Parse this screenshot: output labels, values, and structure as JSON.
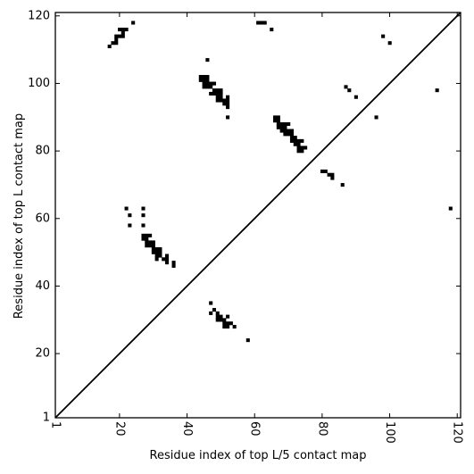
{
  "chart_data": {
    "type": "scatter",
    "xlabel": "Residue index of top L/5 contact map",
    "ylabel": "Residue index of top L contact map",
    "xlim": [
      1,
      121
    ],
    "ylim": [
      1,
      121
    ],
    "xticks": [
      {
        "value": 1,
        "label": "1"
      },
      {
        "value": 20,
        "label": "20"
      },
      {
        "value": 40,
        "label": "40"
      },
      {
        "value": 60,
        "label": "60"
      },
      {
        "value": 80,
        "label": "80"
      },
      {
        "value": 100,
        "label": "100"
      },
      {
        "value": 120,
        "label": "120"
      }
    ],
    "yticks": [
      {
        "value": 1,
        "label": "1"
      },
      {
        "value": 20,
        "label": "20"
      },
      {
        "value": 40,
        "label": "40"
      },
      {
        "value": 60,
        "label": "60"
      },
      {
        "value": 80,
        "label": "80"
      },
      {
        "value": 100,
        "label": "100"
      },
      {
        "value": 120,
        "label": "120"
      }
    ],
    "x_tick_rotation": -90,
    "grid": false,
    "diagonal": {
      "from": [
        1,
        1
      ],
      "to": [
        121,
        121
      ]
    },
    "points_upper": [
      [
        17,
        111
      ],
      [
        18,
        112
      ],
      [
        19,
        112
      ],
      [
        19,
        113
      ],
      [
        19,
        114
      ],
      [
        20,
        114
      ],
      [
        21,
        114
      ],
      [
        21,
        115
      ],
      [
        20,
        116
      ],
      [
        21,
        116
      ],
      [
        22,
        116
      ],
      [
        24,
        118
      ],
      [
        44,
        102
      ],
      [
        45,
        102
      ],
      [
        46,
        102
      ],
      [
        44,
        101
      ],
      [
        45,
        101
      ],
      [
        46,
        101
      ],
      [
        45,
        100
      ],
      [
        46,
        100
      ],
      [
        47,
        100
      ],
      [
        48,
        100
      ],
      [
        45,
        99
      ],
      [
        46,
        99
      ],
      [
        47,
        99
      ],
      [
        48,
        98
      ],
      [
        49,
        98
      ],
      [
        50,
        98
      ],
      [
        47,
        97
      ],
      [
        48,
        97
      ],
      [
        49,
        97
      ],
      [
        50,
        97
      ],
      [
        49,
        96
      ],
      [
        50,
        96
      ],
      [
        52,
        96
      ],
      [
        49,
        95
      ],
      [
        50,
        95
      ],
      [
        51,
        95
      ],
      [
        52,
        95
      ],
      [
        51,
        94
      ],
      [
        52,
        94
      ],
      [
        52,
        93
      ],
      [
        46,
        107
      ],
      [
        52,
        90
      ],
      [
        61,
        118
      ],
      [
        62,
        118
      ],
      [
        63,
        118
      ],
      [
        65,
        116
      ],
      [
        66,
        90
      ],
      [
        67,
        90
      ],
      [
        66,
        89
      ],
      [
        67,
        89
      ],
      [
        67,
        88
      ],
      [
        68,
        88
      ],
      [
        69,
        88
      ],
      [
        70,
        88
      ],
      [
        67,
        87
      ],
      [
        68,
        87
      ],
      [
        69,
        87
      ],
      [
        68,
        86
      ],
      [
        69,
        86
      ],
      [
        70,
        86
      ],
      [
        71,
        86
      ],
      [
        69,
        85
      ],
      [
        70,
        85
      ],
      [
        71,
        85
      ],
      [
        71,
        84
      ],
      [
        72,
        84
      ],
      [
        71,
        83
      ],
      [
        72,
        83
      ],
      [
        73,
        83
      ],
      [
        74,
        83
      ],
      [
        72,
        82
      ],
      [
        73,
        82
      ],
      [
        73,
        81
      ],
      [
        74,
        81
      ],
      [
        75,
        81
      ],
      [
        73,
        80
      ],
      [
        74,
        80
      ],
      [
        80,
        74
      ],
      [
        81,
        74
      ],
      [
        82,
        73
      ],
      [
        83,
        73
      ],
      [
        83,
        72
      ],
      [
        86,
        70
      ],
      [
        87,
        99
      ],
      [
        88,
        98
      ],
      [
        90,
        96
      ],
      [
        96,
        90
      ],
      [
        98,
        114
      ],
      [
        100,
        112
      ],
      [
        114,
        98
      ],
      [
        118,
        63
      ]
    ],
    "points_lower": [
      [
        22,
        63
      ],
      [
        23,
        61
      ],
      [
        27,
        63
      ],
      [
        27,
        61
      ],
      [
        23,
        58
      ],
      [
        27,
        58
      ],
      [
        27,
        55
      ],
      [
        28,
        55
      ],
      [
        29,
        55
      ],
      [
        27,
        54
      ],
      [
        28,
        54
      ],
      [
        28,
        53
      ],
      [
        29,
        53
      ],
      [
        30,
        53
      ],
      [
        28,
        52
      ],
      [
        29,
        52
      ],
      [
        30,
        52
      ],
      [
        30,
        51
      ],
      [
        31,
        51
      ],
      [
        32,
        51
      ],
      [
        30,
        50
      ],
      [
        31,
        50
      ],
      [
        32,
        50
      ],
      [
        31,
        49
      ],
      [
        32,
        49
      ],
      [
        34,
        49
      ],
      [
        31,
        48
      ],
      [
        33,
        48
      ],
      [
        34,
        48
      ],
      [
        34,
        47
      ],
      [
        36,
        47
      ],
      [
        36,
        46
      ],
      [
        47,
        35
      ],
      [
        48,
        33
      ],
      [
        47,
        32
      ],
      [
        49,
        32
      ],
      [
        49,
        31
      ],
      [
        50,
        31
      ],
      [
        52,
        31
      ],
      [
        49,
        30
      ],
      [
        50,
        30
      ],
      [
        51,
        30
      ],
      [
        51,
        29
      ],
      [
        52,
        29
      ],
      [
        53,
        29
      ],
      [
        51,
        28
      ],
      [
        52,
        28
      ],
      [
        54,
        28
      ],
      [
        58,
        24
      ]
    ],
    "colors": {
      "points": "#000000",
      "axes": "#000000",
      "background": "#ffffff"
    }
  }
}
